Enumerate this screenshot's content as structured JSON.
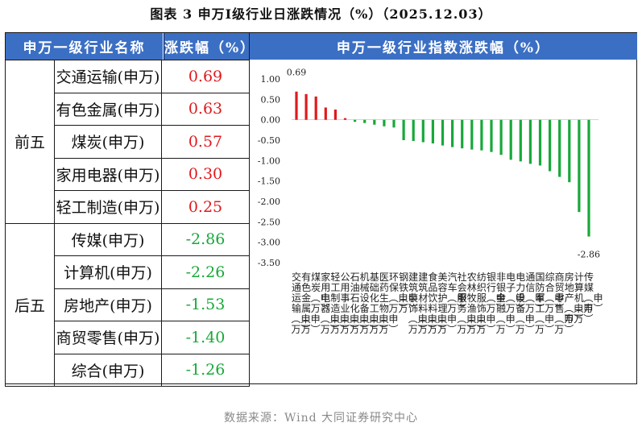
{
  "title": "图表 3   申万Ⅰ级行业日涨跌情况（%）（2025.12.03）",
  "table": {
    "header_name": "申万一级行业名称",
    "header_change": "涨跌幅（%）",
    "groups": [
      {
        "label": "前五",
        "rows": [
          {
            "name": "交通运输(申万)",
            "change": "0.69"
          },
          {
            "name": "有色金属(申万)",
            "change": "0.63"
          },
          {
            "name": "煤炭(申万)",
            "change": "0.57"
          },
          {
            "name": "家用电器(申万)",
            "change": "0.30"
          },
          {
            "name": "轻工制造(申万)",
            "change": "0.25"
          }
        ]
      },
      {
        "label": "后五",
        "rows": [
          {
            "name": "传媒(申万)",
            "change": "-2.86"
          },
          {
            "name": "计算机(申万)",
            "change": "-2.26"
          },
          {
            "name": "房地产(申万)",
            "change": "-1.53"
          },
          {
            "name": "商贸零售(申万)",
            "change": "-1.40"
          },
          {
            "name": "综合(申万)",
            "change": "-1.26"
          }
        ]
      }
    ]
  },
  "chart_header": "申万一级行业指数涨跌幅（%）",
  "chart_data": {
    "type": "bar",
    "title": "申万一级行业指数涨跌幅（%）",
    "categories": [
      "交通运输(申万)",
      "有色金属(申万)",
      "煤炭(申万)",
      "家用电器(申万)",
      "轻工制造(申万)",
      "公用事业(申万)",
      "石油石化(申万)",
      "机械设备(申万)",
      "基础化工(申万)",
      "医药生物(申万)",
      "环保(申万)",
      "钢铁(申万)",
      "建筑装饰(申万)",
      "建筑材料(申万)",
      "食品饮料(申万)",
      "美容护理(申万)",
      "汽车(申万)",
      "社会服务(申万)",
      "农林牧渔(申万)",
      "纺织服饰(申万)",
      "银行(申万)",
      "非银金融(申万)",
      "电子(申万)",
      "电力设备(申万)",
      "通信(申万)",
      "国防军工(申万)",
      "综合(申万)",
      "商贸零售(申万)",
      "房地产(申万)",
      "计算机(申万)",
      "传媒(申万)"
    ],
    "values": [
      0.69,
      0.63,
      0.57,
      0.3,
      0.25,
      0.04,
      -0.05,
      -0.08,
      -0.12,
      -0.16,
      -0.19,
      -0.5,
      -0.52,
      -0.55,
      -0.58,
      -0.63,
      -0.67,
      -0.7,
      -0.73,
      -0.75,
      -0.79,
      -0.86,
      -0.98,
      -1.02,
      -1.08,
      -1.12,
      -1.26,
      -1.4,
      -1.53,
      -2.26,
      -2.86
    ],
    "ylim": [
      -3.5,
      1.0
    ],
    "yticks": [
      "1.00",
      "0.50",
      "0.00",
      "-0.50",
      "-1.00",
      "-1.50",
      "-2.00",
      "-2.50",
      "-3.00",
      "-3.50"
    ],
    "labeled_points": {
      "max": "0.69",
      "min": "-2.86"
    },
    "colors": {
      "positive": "#e0191e",
      "negative": "#18a83a"
    },
    "grid": false,
    "legend": "none"
  },
  "source": "数据来源：Wind 大同证券研究中心"
}
